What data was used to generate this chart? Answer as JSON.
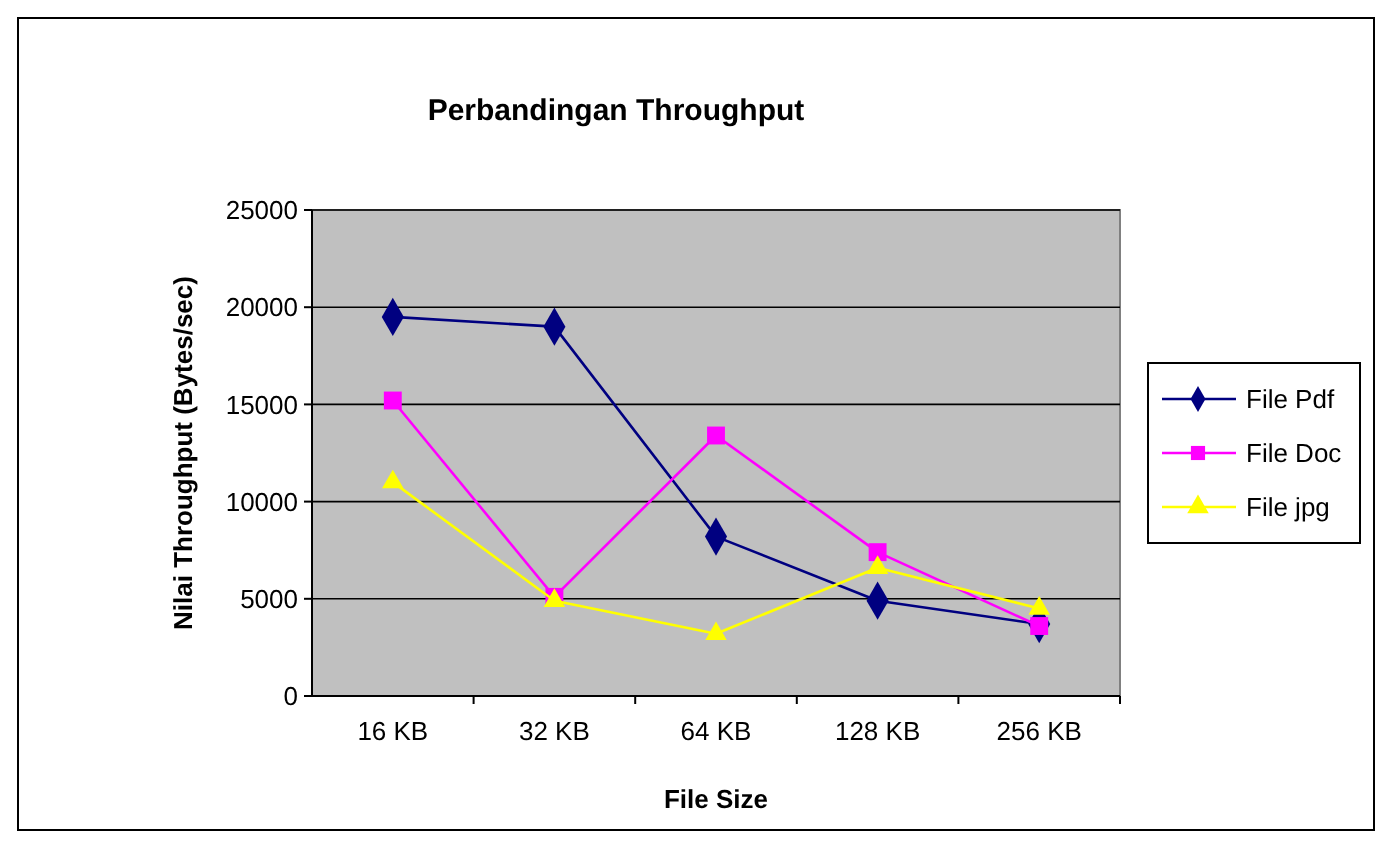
{
  "chart_data": {
    "type": "line",
    "title": "Perbandingan Throughput",
    "xlabel": "File Size",
    "ylabel": "Nilai Throughput (Bytes/sec)",
    "categories": [
      "16 KB",
      "32 KB",
      "64 KB",
      "128 KB",
      "256 KB"
    ],
    "series": [
      {
        "name": "File Pdf",
        "color": "#000080",
        "marker": "diamond",
        "values": [
          19500,
          19000,
          8200,
          4900,
          3700
        ]
      },
      {
        "name": "File Doc",
        "color": "#ff00ff",
        "marker": "square",
        "values": [
          15200,
          5100,
          13400,
          7400,
          3600
        ]
      },
      {
        "name": "File jpg",
        "color": "#ffff00",
        "marker": "triangle",
        "values": [
          11000,
          4900,
          3200,
          6600,
          4500
        ]
      }
    ],
    "ylim": [
      0,
      25000
    ],
    "yticks": [
      0,
      5000,
      10000,
      15000,
      20000,
      25000
    ],
    "grid": "y",
    "legend": "right"
  }
}
